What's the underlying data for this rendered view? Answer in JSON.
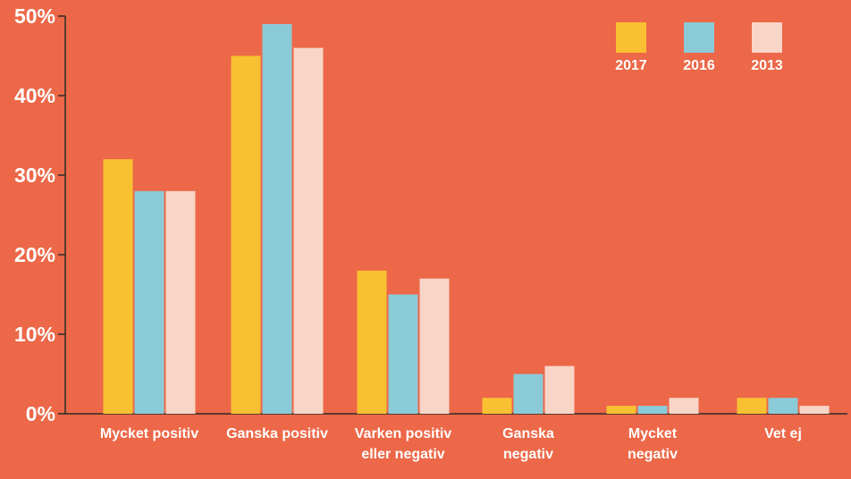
{
  "chart_data": {
    "type": "bar",
    "categories": [
      [
        "Mycket positiv"
      ],
      [
        "Ganska positiv"
      ],
      [
        "Varken positiv",
        "eller negativ"
      ],
      [
        "Ganska",
        "negativ"
      ],
      [
        "Mycket",
        "negativ"
      ],
      [
        "Vet ej"
      ]
    ],
    "series": [
      {
        "name": "2017",
        "color": "#F9C132",
        "values": [
          32,
          45,
          18,
          2,
          1,
          2
        ]
      },
      {
        "name": "2016",
        "color": "#8BCBD7",
        "values": [
          28,
          49,
          15,
          5,
          1,
          2
        ]
      },
      {
        "name": "2013",
        "color": "#F9D5C7",
        "values": [
          28,
          46,
          17,
          6,
          2,
          1
        ]
      }
    ],
    "y_ticks": [
      "0%",
      "10%",
      "20%",
      "30%",
      "40%",
      "50%"
    ],
    "ylim": [
      0,
      50
    ],
    "legend_position": "top-right",
    "background_color": "#EC6848",
    "axis_color": "#2b2b2b"
  }
}
